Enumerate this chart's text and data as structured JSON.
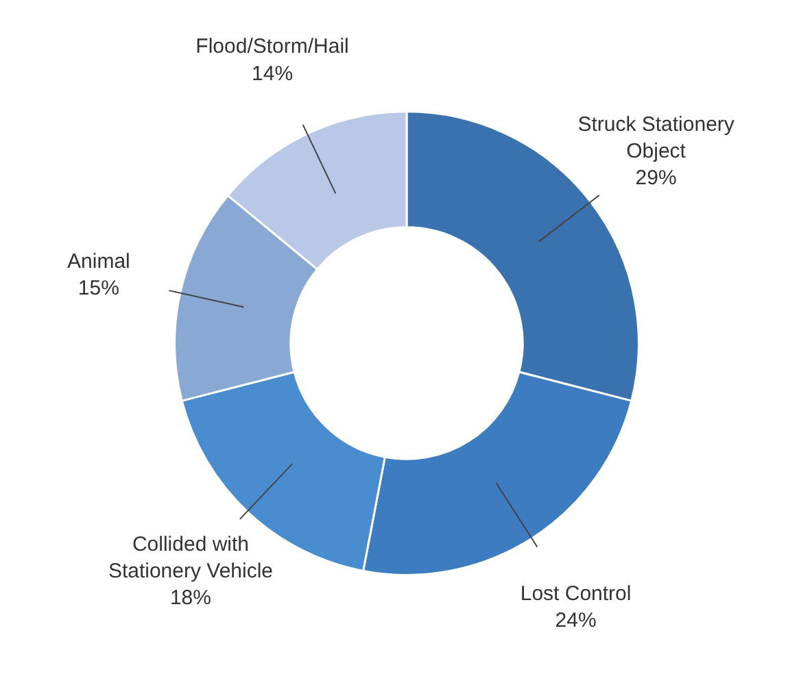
{
  "chart_data": {
    "type": "donut",
    "categories": [
      "Struck Stationery Object",
      "Lost Control",
      "Collided with Stationery Vehicle",
      "Animal",
      "Flood/Storm/Hail"
    ],
    "values": [
      29,
      24,
      18,
      15,
      14
    ],
    "value_labels": [
      "29%",
      "24%",
      "18%",
      "15%",
      "14%"
    ],
    "colors": [
      "#3a72b0",
      "#3d7cc0",
      "#4a8cd0",
      "#8aa8d4",
      "#b8c8e6"
    ]
  }
}
